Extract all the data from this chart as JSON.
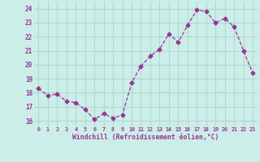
{
  "x": [
    0,
    1,
    2,
    3,
    4,
    5,
    6,
    7,
    8,
    9,
    10,
    11,
    12,
    13,
    14,
    15,
    16,
    17,
    18,
    19,
    20,
    21,
    22,
    23
  ],
  "y": [
    18.3,
    17.8,
    17.9,
    17.4,
    17.3,
    16.8,
    16.1,
    16.5,
    16.2,
    16.4,
    18.7,
    19.9,
    20.6,
    21.1,
    22.2,
    21.6,
    22.8,
    23.9,
    23.8,
    23.0,
    23.3,
    22.7,
    21.0,
    19.4
  ],
  "line_color": "#993399",
  "marker": "D",
  "marker_size": 2.5,
  "bg_color": "#cceee8",
  "grid_color": "#b0d8d4",
  "xlabel": "Windchill (Refroidissement éolien,°C)",
  "xlabel_color": "#993399",
  "tick_color": "#993399",
  "ylabel_ticks": [
    16,
    17,
    18,
    19,
    20,
    21,
    22,
    23,
    24
  ],
  "xlim": [
    -0.5,
    23.5
  ],
  "ylim": [
    15.6,
    24.5
  ],
  "xtick_labels": [
    "0",
    "1",
    "2",
    "3",
    "4",
    "5",
    "6",
    "7",
    "8",
    "9",
    "10",
    "11",
    "12",
    "13",
    "14",
    "15",
    "16",
    "17",
    "18",
    "19",
    "20",
    "21",
    "22",
    "23"
  ]
}
